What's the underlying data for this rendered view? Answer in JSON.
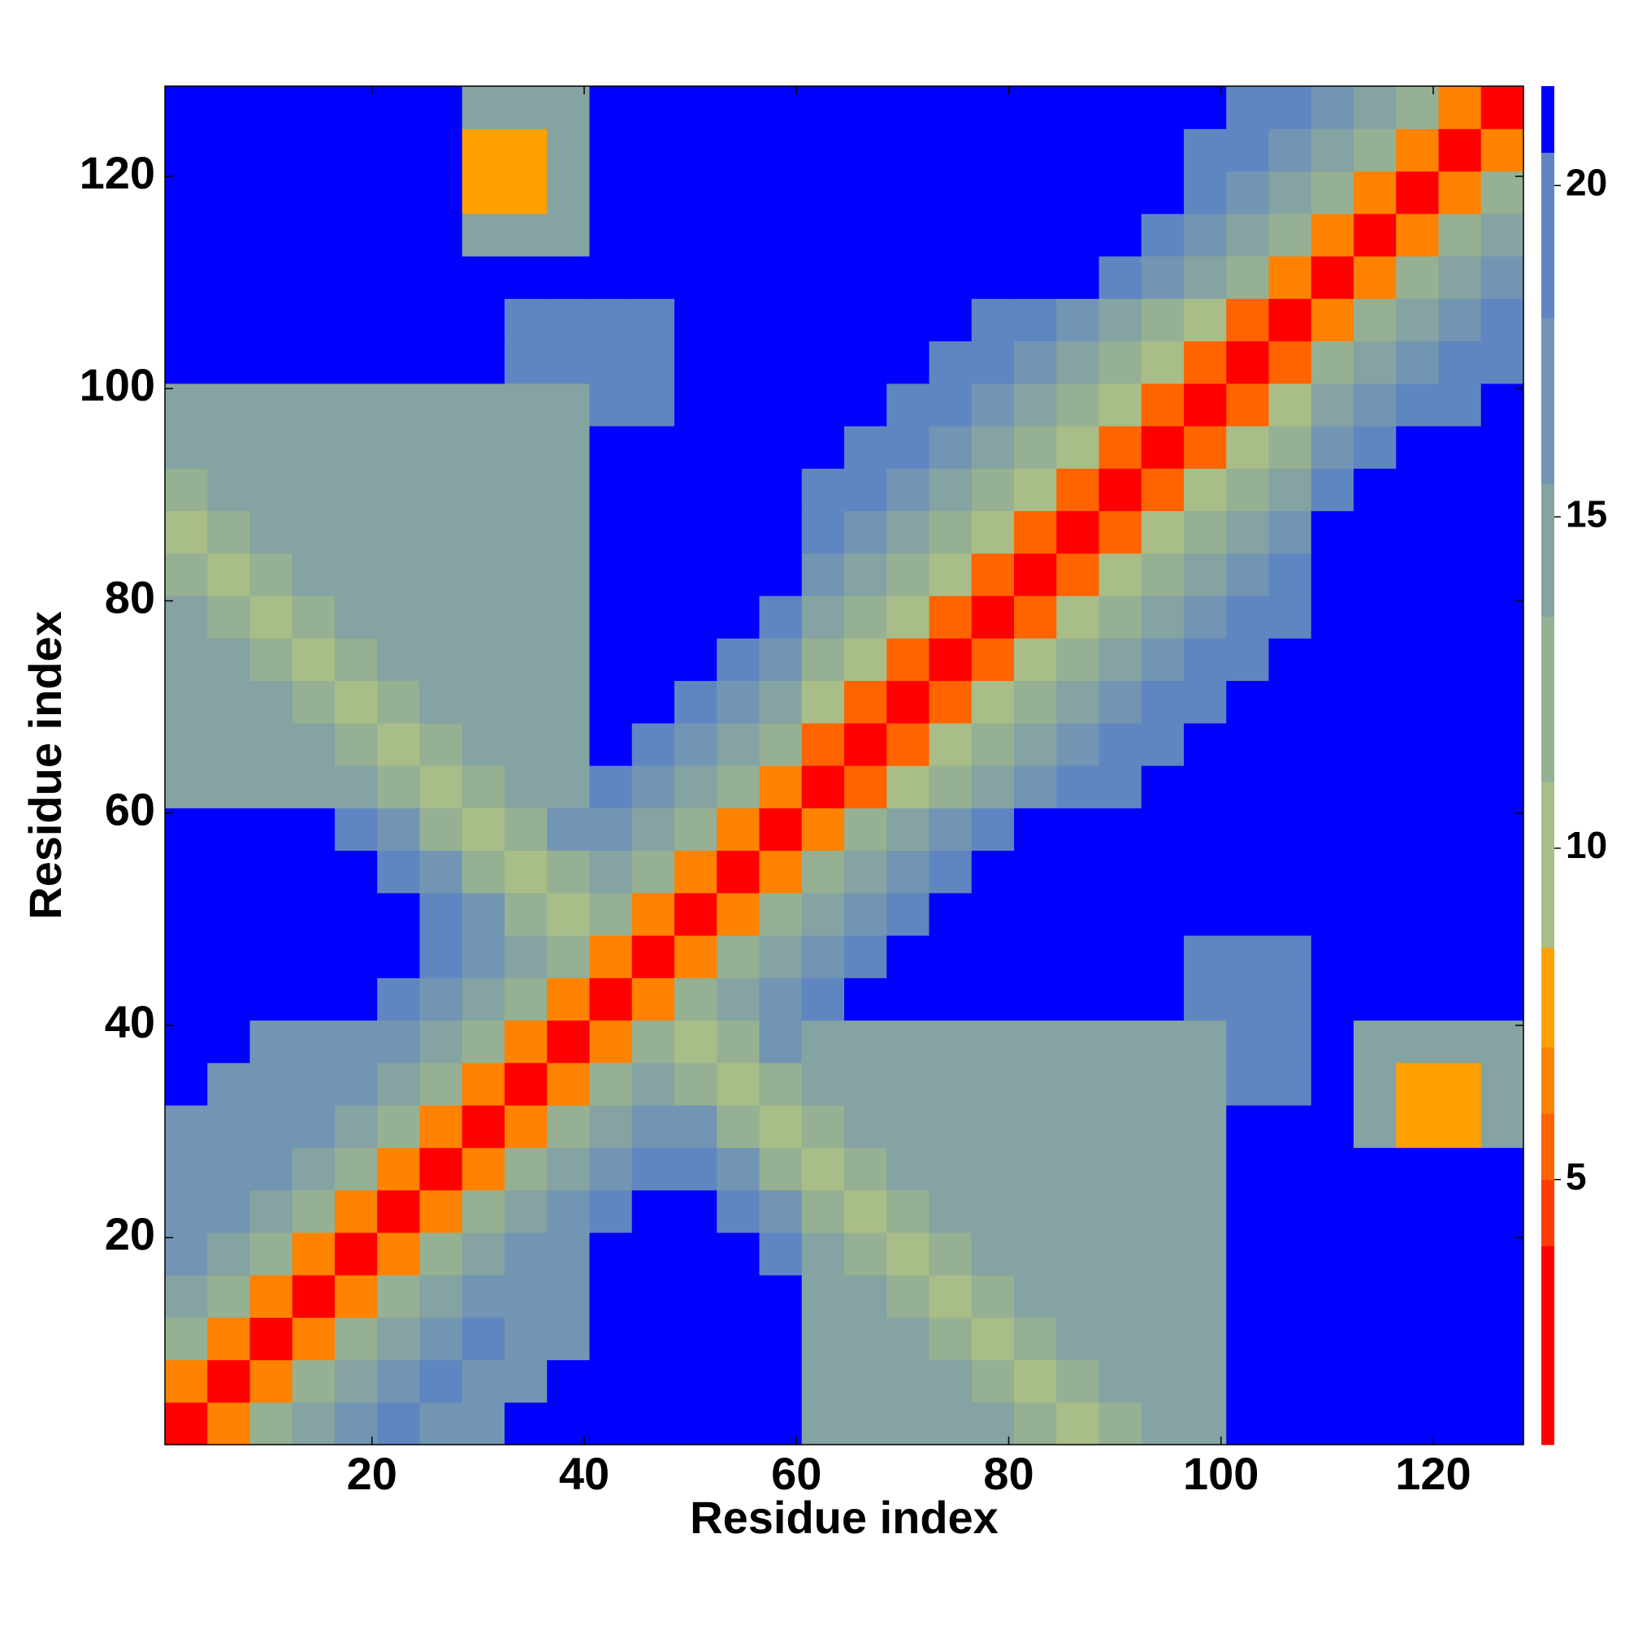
{
  "chart_data": {
    "type": "heatmap",
    "xlabel": "Residue index",
    "ylabel": "Residue index",
    "x": [
      2.5,
      6.5,
      10.5,
      14.5,
      18.5,
      22.5,
      26.5,
      30.5,
      34.5,
      38.5,
      42.5,
      46.5,
      50.5,
      54.5,
      58.5,
      62.5,
      66.5,
      70.5,
      74.5,
      78.5,
      82.5,
      86.5,
      90.5,
      94.5,
      98.5,
      102.5,
      106.5,
      110.5,
      114.5,
      118.5,
      122.5,
      126.5
    ],
    "y": [
      2.5,
      6.5,
      10.5,
      14.5,
      18.5,
      22.5,
      26.5,
      30.5,
      34.5,
      38.5,
      42.5,
      46.5,
      50.5,
      54.5,
      58.5,
      62.5,
      66.5,
      70.5,
      74.5,
      78.5,
      82.5,
      86.5,
      90.5,
      94.5,
      98.5,
      102.5,
      106.5,
      110.5,
      114.5,
      118.5,
      122.5,
      126.5
    ],
    "xlim": [
      0.5,
      128.5
    ],
    "ylim": [
      0.5,
      128.5
    ],
    "xticks": [
      20,
      40,
      60,
      80,
      100,
      120
    ],
    "yticks": [
      20,
      40,
      60,
      80,
      100,
      120
    ],
    "zlim": [
      1,
      21.5
    ],
    "zticks": [
      5,
      10,
      15,
      20
    ],
    "colorscale": [
      {
        "value": 1,
        "color": "#ff0000"
      },
      {
        "value": 4,
        "color": "#ff3c00"
      },
      {
        "value": 5,
        "color": "#ff6400"
      },
      {
        "value": 6,
        "color": "#ff8200"
      },
      {
        "value": 7,
        "color": "#ffa000"
      },
      {
        "value": 8.5,
        "color": "#a9bd88"
      },
      {
        "value": 11,
        "color": "#95b092"
      },
      {
        "value": 13.5,
        "color": "#85a3a2"
      },
      {
        "value": 15.5,
        "color": "#7295b3"
      },
      {
        "value": 18,
        "color": "#5f86c0"
      },
      {
        "value": 20.5,
        "color": "#0000ff"
      }
    ],
    "z": [
      [
        2,
        6,
        11,
        14,
        17,
        19,
        17,
        17,
        22,
        22,
        22,
        22,
        22,
        22,
        22,
        15,
        15,
        15,
        15,
        15,
        13,
        10,
        13,
        15,
        15,
        22,
        22,
        22,
        22,
        22,
        22,
        22
      ],
      [
        6,
        2,
        6,
        11,
        14,
        17,
        19,
        17,
        17,
        22,
        22,
        22,
        22,
        22,
        22,
        15,
        15,
        15,
        15,
        13,
        10,
        13,
        15,
        15,
        15,
        22,
        22,
        22,
        22,
        22,
        22,
        22
      ],
      [
        11,
        6,
        2,
        6,
        11,
        14,
        17,
        19,
        17,
        17,
        22,
        22,
        22,
        22,
        22,
        15,
        15,
        15,
        13,
        10,
        13,
        15,
        15,
        15,
        15,
        22,
        22,
        22,
        22,
        22,
        22,
        22
      ],
      [
        14,
        11,
        6,
        2,
        6,
        11,
        14,
        17,
        17,
        17,
        22,
        22,
        22,
        22,
        22,
        15,
        15,
        13,
        10,
        13,
        15,
        15,
        15,
        15,
        15,
        22,
        22,
        22,
        22,
        22,
        22,
        22
      ],
      [
        17,
        14,
        11,
        6,
        2,
        6,
        11,
        14,
        17,
        17,
        22,
        22,
        22,
        22,
        19,
        15,
        13,
        10,
        13,
        15,
        15,
        15,
        15,
        15,
        15,
        22,
        22,
        22,
        22,
        22,
        22,
        22
      ],
      [
        17,
        17,
        14,
        11,
        6,
        2,
        6,
        11,
        14,
        17,
        19,
        22,
        22,
        19,
        16,
        13,
        10,
        13,
        15,
        15,
        15,
        15,
        15,
        15,
        15,
        22,
        22,
        22,
        22,
        22,
        22,
        22
      ],
      [
        17,
        17,
        17,
        14,
        11,
        6,
        2,
        6,
        11,
        14,
        17,
        19,
        19,
        16,
        13,
        10,
        13,
        15,
        15,
        15,
        15,
        15,
        15,
        15,
        15,
        22,
        22,
        22,
        22,
        22,
        22,
        22
      ],
      [
        17,
        17,
        17,
        17,
        14,
        11,
        6,
        2,
        6,
        11,
        14,
        17,
        16,
        13,
        10,
        13,
        15,
        15,
        15,
        15,
        15,
        15,
        15,
        15,
        15,
        22,
        22,
        22,
        14,
        7,
        7,
        14
      ],
      [
        22,
        17,
        17,
        17,
        17,
        14,
        11,
        6,
        2,
        6,
        11,
        14,
        13,
        10,
        13,
        15,
        15,
        15,
        15,
        15,
        15,
        15,
        15,
        15,
        15,
        18,
        18,
        22,
        14,
        7,
        7,
        14
      ],
      [
        22,
        22,
        17,
        17,
        17,
        17,
        14,
        11,
        6,
        2,
        6,
        11,
        10,
        13,
        16,
        15,
        15,
        15,
        15,
        15,
        15,
        15,
        15,
        15,
        15,
        18,
        18,
        22,
        14,
        14,
        14,
        14
      ],
      [
        22,
        22,
        22,
        22,
        22,
        19,
        17,
        14,
        11,
        6,
        2,
        6,
        11,
        14,
        17,
        19,
        22,
        22,
        22,
        22,
        22,
        22,
        22,
        22,
        18,
        18,
        18,
        22,
        22,
        22,
        22,
        22
      ],
      [
        22,
        22,
        22,
        22,
        22,
        22,
        19,
        17,
        14,
        11,
        6,
        2,
        6,
        11,
        14,
        17,
        19,
        22,
        22,
        22,
        22,
        22,
        22,
        22,
        18,
        18,
        18,
        22,
        22,
        22,
        22,
        22
      ],
      [
        22,
        22,
        22,
        22,
        22,
        22,
        19,
        16,
        13,
        10,
        11,
        6,
        2,
        6,
        11,
        14,
        17,
        19,
        22,
        22,
        22,
        22,
        22,
        22,
        22,
        22,
        22,
        22,
        22,
        22,
        22,
        22
      ],
      [
        22,
        22,
        22,
        22,
        22,
        19,
        16,
        13,
        10,
        13,
        14,
        11,
        6,
        2,
        6,
        11,
        14,
        17,
        19,
        22,
        22,
        22,
        22,
        22,
        22,
        22,
        22,
        22,
        22,
        22,
        22,
        22
      ],
      [
        22,
        22,
        22,
        22,
        19,
        16,
        13,
        10,
        13,
        16,
        17,
        14,
        11,
        6,
        2,
        6,
        11,
        14,
        17,
        19,
        22,
        22,
        22,
        22,
        22,
        22,
        22,
        22,
        22,
        22,
        22,
        22
      ],
      [
        15,
        15,
        15,
        15,
        15,
        13,
        10,
        13,
        15,
        15,
        19,
        17,
        14,
        11,
        6,
        2,
        5,
        9,
        12,
        14,
        16,
        18,
        20,
        22,
        22,
        22,
        22,
        22,
        22,
        22,
        22,
        22
      ],
      [
        15,
        15,
        15,
        15,
        13,
        10,
        13,
        15,
        15,
        15,
        22,
        19,
        17,
        14,
        11,
        5,
        2,
        5,
        9,
        12,
        14,
        16,
        18,
        20,
        22,
        22,
        22,
        22,
        22,
        22,
        22,
        22
      ],
      [
        15,
        15,
        15,
        13,
        10,
        13,
        15,
        15,
        15,
        15,
        22,
        22,
        19,
        17,
        14,
        9,
        5,
        2,
        5,
        9,
        12,
        14,
        16,
        18,
        20,
        22,
        22,
        22,
        22,
        22,
        22,
        22
      ],
      [
        15,
        15,
        13,
        10,
        13,
        15,
        15,
        15,
        15,
        15,
        22,
        22,
        22,
        19,
        17,
        12,
        9,
        5,
        2,
        5,
        9,
        12,
        14,
        16,
        18,
        20,
        22,
        22,
        22,
        22,
        22,
        22
      ],
      [
        15,
        13,
        10,
        13,
        15,
        15,
        15,
        15,
        15,
        15,
        22,
        22,
        22,
        22,
        19,
        14,
        12,
        9,
        5,
        2,
        5,
        9,
        12,
        14,
        16,
        18,
        20,
        22,
        22,
        22,
        22,
        22
      ],
      [
        13,
        10,
        13,
        15,
        15,
        15,
        15,
        15,
        15,
        15,
        22,
        22,
        22,
        22,
        22,
        16,
        14,
        12,
        9,
        5,
        2,
        5,
        9,
        12,
        14,
        16,
        18,
        22,
        22,
        22,
        22,
        22
      ],
      [
        10,
        13,
        15,
        15,
        15,
        15,
        15,
        15,
        15,
        15,
        22,
        22,
        22,
        22,
        22,
        18,
        16,
        14,
        12,
        9,
        5,
        2,
        5,
        9,
        12,
        14,
        16,
        22,
        22,
        22,
        22,
        22
      ],
      [
        13,
        15,
        15,
        15,
        15,
        15,
        15,
        15,
        15,
        15,
        22,
        22,
        22,
        22,
        22,
        20,
        18,
        16,
        14,
        12,
        9,
        5,
        2,
        5,
        9,
        12,
        14,
        19,
        22,
        22,
        22,
        22
      ],
      [
        15,
        15,
        15,
        15,
        15,
        15,
        15,
        15,
        15,
        15,
        22,
        22,
        22,
        22,
        22,
        22,
        20,
        18,
        16,
        14,
        12,
        9,
        5,
        2,
        5,
        9,
        12,
        17,
        19,
        22,
        22,
        22
      ],
      [
        15,
        15,
        15,
        15,
        15,
        15,
        15,
        15,
        15,
        15,
        18,
        18,
        22,
        22,
        22,
        22,
        22,
        20,
        18,
        16,
        14,
        12,
        9,
        5,
        2,
        5,
        9,
        14,
        17,
        18,
        18,
        22
      ],
      [
        22,
        22,
        22,
        22,
        22,
        22,
        22,
        22,
        18,
        18,
        18,
        18,
        22,
        22,
        22,
        22,
        22,
        22,
        20,
        18,
        16,
        14,
        12,
        9,
        5,
        2,
        5,
        11,
        14,
        17,
        18,
        18
      ],
      [
        22,
        22,
        22,
        22,
        22,
        22,
        22,
        22,
        18,
        18,
        18,
        18,
        22,
        22,
        22,
        22,
        22,
        22,
        22,
        20,
        18,
        16,
        14,
        12,
        9,
        5,
        2,
        6,
        11,
        14,
        17,
        18
      ],
      [
        22,
        22,
        22,
        22,
        22,
        22,
        22,
        22,
        22,
        22,
        22,
        22,
        22,
        22,
        22,
        22,
        22,
        22,
        22,
        22,
        22,
        22,
        19,
        17,
        14,
        11,
        6,
        2,
        6,
        11,
        14,
        17
      ],
      [
        22,
        22,
        22,
        22,
        22,
        22,
        22,
        14,
        14,
        14,
        22,
        22,
        22,
        22,
        22,
        22,
        22,
        22,
        22,
        22,
        22,
        22,
        22,
        19,
        17,
        14,
        11,
        6,
        2,
        6,
        11,
        14
      ],
      [
        22,
        22,
        22,
        22,
        22,
        22,
        22,
        7,
        7,
        14,
        22,
        22,
        22,
        22,
        22,
        22,
        22,
        22,
        22,
        22,
        22,
        22,
        22,
        22,
        18,
        17,
        14,
        11,
        6,
        2,
        6,
        11
      ],
      [
        22,
        22,
        22,
        22,
        22,
        22,
        22,
        7,
        7,
        14,
        22,
        22,
        22,
        22,
        22,
        22,
        22,
        22,
        22,
        22,
        22,
        22,
        22,
        22,
        18,
        18,
        17,
        14,
        11,
        6,
        2,
        6
      ],
      [
        22,
        22,
        22,
        22,
        22,
        22,
        22,
        14,
        14,
        14,
        22,
        22,
        22,
        22,
        22,
        22,
        22,
        22,
        22,
        22,
        22,
        22,
        22,
        22,
        22,
        18,
        18,
        17,
        14,
        11,
        6,
        2
      ]
    ]
  }
}
